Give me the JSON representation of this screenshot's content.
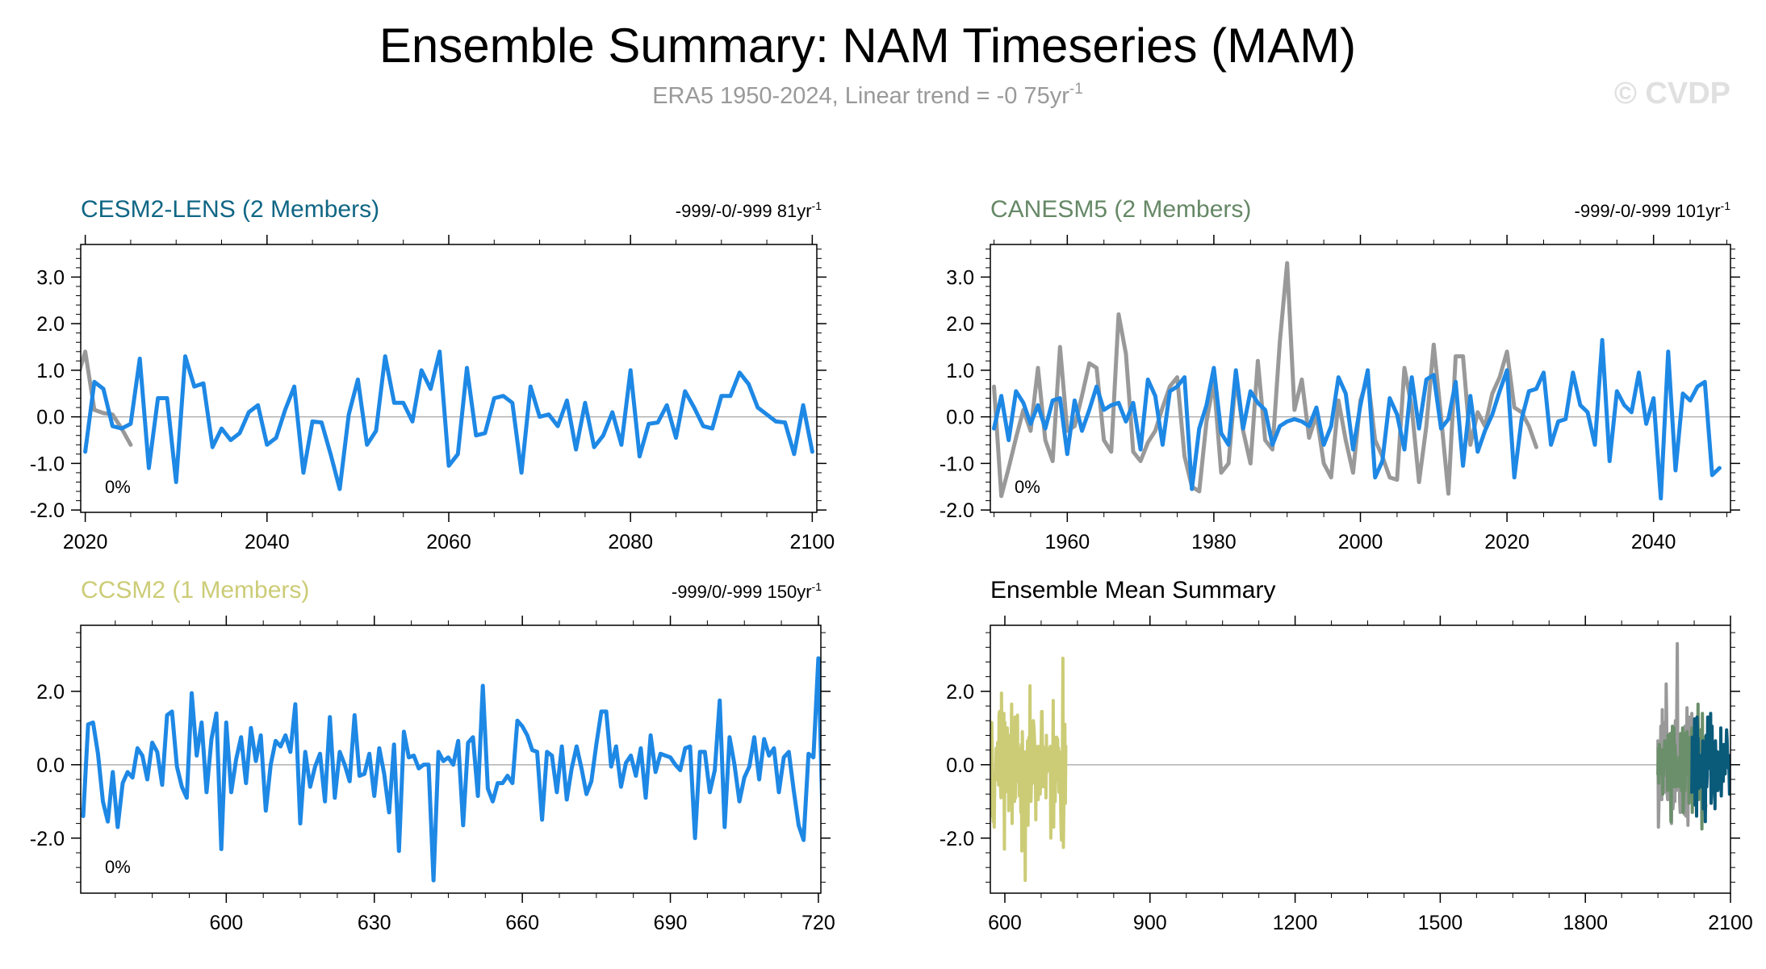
{
  "page": {
    "title": "Ensemble Summary: NAM Timeseries (MAM)",
    "subtitle_main": "ERA5 1950-2024, Linear trend = -0 75yr",
    "subtitle_sup": "-1",
    "watermark": "© CVDP"
  },
  "colors": {
    "blue": "#1e88e5",
    "gray": "#999999",
    "cesm_title": "#0f6685",
    "canesm_title": "#668866",
    "ccsm_title": "#cccc77",
    "cesm_dark": "#0a5a7a",
    "canesm_green": "#6b8f6b"
  },
  "chart_data": [
    {
      "id": "cesm2",
      "type": "line",
      "title": "CESM2-LENS (2 Members)",
      "trend_main": "-999/-0/-999 81yr",
      "trend_sup": "-1",
      "pct": "0%",
      "xlim": [
        2019.5,
        2100.5
      ],
      "ylim": [
        -2.05,
        3.7
      ],
      "yticks": [
        3.0,
        2.0,
        1.0,
        0.0,
        -1.0,
        -2.0
      ],
      "ytick_labels": [
        "3.0",
        "2.0",
        "1.0",
        "0.0",
        "-1.0",
        "-2.0"
      ],
      "xticks": [
        2020,
        2040,
        2060,
        2080,
        2100
      ],
      "xtick_labels": [
        "2020",
        "2040",
        "2060",
        "2080",
        "2100"
      ],
      "series": [
        {
          "name": "obs",
          "color": "gray",
          "x0": 2019,
          "values": [
            0.75,
            1.4,
            0.15,
            0.08,
            0.05,
            -0.25,
            -0.6
          ]
        },
        {
          "name": "ensemble",
          "color": "blue",
          "x0": 2020,
          "values": [
            -0.75,
            0.75,
            0.6,
            -0.2,
            -0.25,
            -0.15,
            1.25,
            -1.1,
            0.4,
            0.4,
            -1.4,
            1.3,
            0.65,
            0.72,
            -0.65,
            -0.25,
            -0.5,
            -0.35,
            0.1,
            0.25,
            -0.6,
            -0.45,
            0.15,
            0.65,
            -1.2,
            -0.1,
            -0.12,
            -0.8,
            -1.55,
            0.05,
            0.8,
            -0.6,
            -0.3,
            1.3,
            0.3,
            0.3,
            -0.1,
            1.0,
            0.6,
            1.4,
            -1.05,
            -0.8,
            1.05,
            -0.4,
            -0.35,
            0.4,
            0.45,
            0.3,
            -1.2,
            0.65,
            0.0,
            0.05,
            -0.2,
            0.35,
            -0.7,
            0.3,
            -0.65,
            -0.4,
            0.1,
            -0.6,
            1.0,
            -0.85,
            -0.15,
            -0.12,
            0.25,
            -0.45,
            0.55,
            0.2,
            -0.2,
            -0.25,
            0.45,
            0.45,
            0.95,
            0.7,
            0.2,
            0.05,
            -0.1,
            -0.12,
            -0.8,
            0.25,
            -0.75
          ]
        }
      ]
    },
    {
      "id": "canesm5",
      "type": "line",
      "title": "CANESM5 (2 Members)",
      "trend_main": "-999/-0/-999 101yr",
      "trend_sup": "-1",
      "pct": "0%",
      "xlim": [
        1949.5,
        2050.5
      ],
      "ylim": [
        -2.05,
        3.7
      ],
      "yticks": [
        3.0,
        2.0,
        1.0,
        0.0,
        -1.0,
        -2.0
      ],
      "ytick_labels": [
        "3.0",
        "2.0",
        "1.0",
        "0.0",
        "-1.0",
        "-2.0"
      ],
      "xticks": [
        1960,
        1980,
        2000,
        2020,
        2040
      ],
      "xtick_labels": [
        "1960",
        "1980",
        "2000",
        "2020",
        "2040"
      ],
      "series": [
        {
          "name": "obs",
          "color": "gray",
          "x0": 1950,
          "values": [
            0.65,
            -1.7,
            -1.1,
            -0.45,
            0.15,
            -0.3,
            1.05,
            -0.5,
            -0.95,
            1.5,
            -0.3,
            -0.2,
            0.45,
            1.15,
            1.05,
            -0.5,
            -0.75,
            2.2,
            1.35,
            -0.75,
            -0.95,
            -0.55,
            -0.3,
            0.2,
            0.65,
            0.85,
            -0.85,
            -1.5,
            -1.6,
            -0.1,
            0.75,
            -1.2,
            -1.0,
            0.85,
            -0.3,
            -1.0,
            1.2,
            -0.5,
            -0.7,
            1.6,
            3.3,
            0.15,
            0.8,
            -0.45,
            0.05,
            -1.0,
            -1.3,
            0.35,
            -0.5,
            -1.2,
            0.35,
            0.85,
            -0.5,
            -0.85,
            -1.3,
            -1.35,
            1.05,
            0.2,
            -1.4,
            -0.2,
            1.55,
            0.0,
            -1.65,
            1.3,
            1.3,
            -0.6,
            0.1,
            -0.2,
            0.5,
            0.85,
            1.4,
            0.2,
            0.1,
            -0.2,
            -0.65
          ]
        },
        {
          "name": "ensemble",
          "color": "blue",
          "x0": 1950,
          "values": [
            -0.25,
            0.45,
            -0.5,
            0.55,
            0.3,
            -0.15,
            0.25,
            -0.25,
            0.35,
            0.4,
            -0.8,
            0.35,
            -0.3,
            0.15,
            0.65,
            0.15,
            0.25,
            0.3,
            -0.1,
            0.3,
            -0.7,
            0.8,
            0.45,
            -0.6,
            0.55,
            0.65,
            0.85,
            -1.55,
            -0.25,
            0.25,
            1.05,
            -0.35,
            -0.6,
            1.0,
            -0.25,
            0.55,
            0.3,
            0.15,
            -0.6,
            -0.2,
            -0.1,
            -0.05,
            -0.1,
            -0.2,
            0.2,
            -0.6,
            -0.2,
            0.85,
            0.5,
            -0.7,
            0.25,
            1.0,
            -1.3,
            -0.95,
            0.4,
            0.05,
            -0.7,
            0.85,
            -0.25,
            0.8,
            0.9,
            -0.25,
            -0.05,
            0.75,
            -1.05,
            0.45,
            -0.75,
            -0.3,
            0.05,
            0.55,
            1.0,
            -1.3,
            -0.05,
            0.55,
            0.6,
            0.95,
            -0.6,
            -0.1,
            -0.05,
            0.95,
            0.25,
            0.1,
            -0.6,
            1.65,
            -0.95,
            0.55,
            0.25,
            0.1,
            0.95,
            -0.15,
            0.4,
            -1.75,
            1.4,
            -1.15,
            0.5,
            0.35,
            0.65,
            0.75,
            -1.25,
            -1.1
          ]
        }
      ]
    },
    {
      "id": "ccsm2",
      "type": "line",
      "title": "CCSM2 (1 Members)",
      "trend_main": "-999/0/-999 150yr",
      "trend_sup": "-1",
      "pct": "0%",
      "xlim": [
        570.5,
        720.5
      ],
      "ylim": [
        -3.5,
        3.8
      ],
      "yticks": [
        2.0,
        0.0,
        -2.0
      ],
      "ytick_labels": [
        "2.0",
        "0.0",
        "-2.0"
      ],
      "xticks": [
        600,
        630,
        660,
        690,
        720
      ],
      "xtick_labels": [
        "600",
        "630",
        "660",
        "690",
        "720"
      ],
      "series": [
        {
          "name": "ensemble",
          "color": "blue",
          "x0": 571,
          "values": [
            -1.4,
            1.1,
            1.15,
            0.3,
            -1.0,
            -1.55,
            -0.2,
            -1.7,
            -0.5,
            -0.2,
            -0.35,
            0.45,
            0.25,
            -0.4,
            0.6,
            0.35,
            -0.55,
            1.35,
            1.45,
            -0.05,
            -0.6,
            -0.9,
            1.95,
            0.25,
            1.15,
            -0.75,
            0.7,
            1.4,
            -2.3,
            1.15,
            -0.75,
            0.15,
            0.75,
            -0.5,
            1.0,
            0.1,
            0.8,
            -1.25,
            0.0,
            0.65,
            0.5,
            0.8,
            0.35,
            1.65,
            -1.6,
            0.35,
            -0.6,
            -0.05,
            0.3,
            -1.0,
            1.3,
            -0.9,
            0.35,
            0.0,
            -0.45,
            1.35,
            -0.3,
            -0.25,
            0.3,
            -0.85,
            0.45,
            -0.25,
            -1.3,
            0.55,
            -2.35,
            0.9,
            0.2,
            0.25,
            -0.1,
            0.0,
            0.0,
            -3.15,
            0.35,
            0.1,
            0.2,
            0.0,
            0.65,
            -1.65,
            0.6,
            0.75,
            -0.85,
            2.15,
            -0.65,
            -1.0,
            -0.5,
            -0.5,
            -0.3,
            -0.5,
            1.2,
            1.05,
            0.8,
            0.4,
            0.35,
            -1.5,
            0.35,
            0.25,
            -0.75,
            0.5,
            -0.95,
            -0.1,
            0.5,
            -0.1,
            -0.8,
            -0.45,
            0.55,
            1.45,
            1.45,
            -0.05,
            0.5,
            -0.6,
            0.05,
            0.25,
            -0.3,
            0.45,
            -0.9,
            0.8,
            -0.2,
            0.3,
            0.25,
            0.2,
            0.0,
            -0.15,
            0.45,
            0.5,
            -2.0,
            0.35,
            0.35,
            -0.75,
            -0.15,
            1.75,
            -1.7,
            0.75,
            0.0,
            -1.0,
            -0.35,
            -0.05,
            0.75,
            -0.4,
            0.7,
            0.25,
            0.45,
            -0.75,
            0.2,
            0.35,
            -0.7,
            -1.65,
            -2.05,
            0.3,
            0.2,
            2.9,
            -2.25,
            -1.0,
            0.8,
            1.1,
            -1.05,
            0.5
          ]
        }
      ]
    },
    {
      "id": "mean",
      "type": "line",
      "title": "Ensemble Mean Summary",
      "xlim": [
        570,
        2100
      ],
      "ylim": [
        -3.5,
        3.8
      ],
      "yticks": [
        2.0,
        0.0,
        -2.0
      ],
      "ytick_labels": [
        "2.0",
        "0.0",
        "-2.0"
      ],
      "xticks": [
        600,
        900,
        1200,
        1500,
        1800,
        2100
      ],
      "xtick_labels": [
        "600",
        "900",
        "1200",
        "1500",
        "1800",
        "2100"
      ],
      "series": [
        {
          "name": "CCSM2",
          "color": "ccsm_title",
          "source": "ccsm2.ensemble"
        },
        {
          "name": "obs",
          "color": "gray",
          "source": "canesm5.obs"
        },
        {
          "name": "CANESM5",
          "color": "canesm_green",
          "source": "canesm5.ensemble"
        },
        {
          "name": "CESM2-LENS",
          "color": "cesm_dark",
          "source": "cesm2.ensemble"
        }
      ]
    }
  ]
}
